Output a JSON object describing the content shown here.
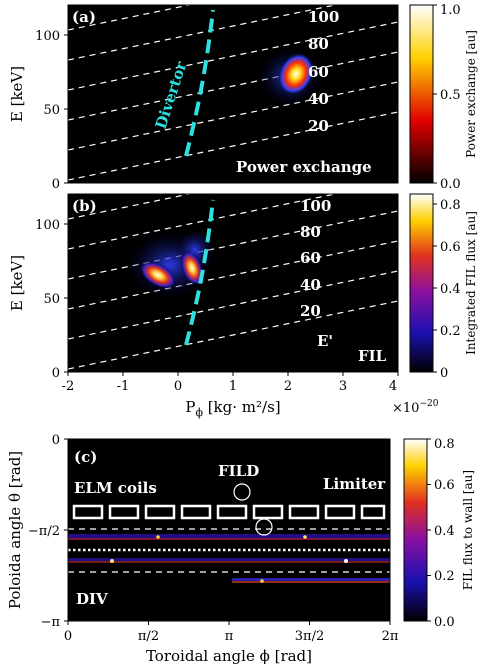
{
  "chart_data": [
    {
      "type": "heatmap",
      "panel_label": "(a)",
      "xlim": [
        -2,
        4
      ],
      "ylim": [
        0,
        120
      ],
      "ylabel": "E [keV]",
      "yticks": [
        "0",
        "50",
        "100"
      ],
      "annotations": {
        "divertor": "Divertor",
        "bottom_right": "Power exchange"
      },
      "energy_line_labels": [
        "100",
        "80",
        "60",
        "40",
        "20"
      ],
      "colorbar": {
        "label": "Power exchange [au]",
        "ticks": [
          "0.0",
          "0.5",
          "1.0"
        ],
        "range": [
          0,
          1.0
        ],
        "colormap": "hot"
      }
    },
    {
      "type": "heatmap",
      "panel_label": "(b)",
      "xlim": [
        -2,
        4
      ],
      "ylim": [
        0,
        120
      ],
      "ylabel": "E [keV]",
      "yticks": [
        "0",
        "50",
        "100"
      ],
      "xticks": [
        "-2",
        "-1",
        "0",
        "1",
        "2",
        "3",
        "4"
      ],
      "xlabel_main": "P",
      "xlabel_sub": "ϕ",
      "xlabel_unit": " [kg· m²/s]",
      "x_multiplier_base": "×10",
      "x_multiplier_exp": "−20",
      "annotations": {
        "e_prime": "E'",
        "bottom_right": "FIL"
      },
      "energy_line_labels": [
        "100",
        "80",
        "60",
        "40",
        "20"
      ],
      "colorbar": {
        "label": "Integrated FIL flux [au]",
        "ticks": [
          "0",
          "0.2",
          "0.4",
          "0.6",
          "0.8"
        ],
        "range": [
          0,
          0.85
        ],
        "colormap": "gnuplot"
      }
    },
    {
      "type": "heatmap",
      "panel_label": "(c)",
      "ylabel": "Poloida angle θ [rad]",
      "xlabel": "Toroidal angle ϕ [rad]",
      "yticks": [
        "0",
        "−π/2",
        "−π"
      ],
      "xticks": [
        "0",
        "π/2",
        "π",
        "3π/2",
        "2π"
      ],
      "annotations": {
        "elm_coils": "ELM coils",
        "fild": "FILD",
        "limiter": "Limiter",
        "div": "DIV"
      },
      "colorbar": {
        "label": "FIL flux to wall [au]",
        "ticks": [
          "0.0",
          "0.2",
          "0.4",
          "0.6",
          "0.8"
        ],
        "range": [
          0,
          0.8
        ],
        "colormap": "gnuplot"
      }
    }
  ],
  "colors": {
    "divertor_line": "#2fe0e0",
    "background": "#000000"
  }
}
